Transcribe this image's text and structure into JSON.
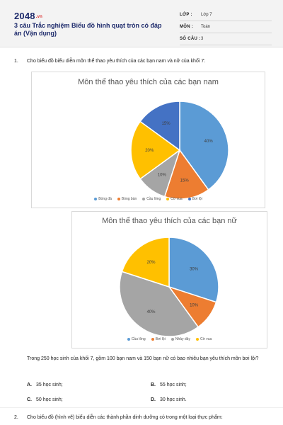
{
  "header": {
    "logo_text": "2048",
    "logo_suffix": ".vn",
    "title": "3 câu Trắc nghiệm Biểu đồ hình quạt tròn có đáp án (Vận dụng)",
    "meta": [
      {
        "label": "LỚP :",
        "value": "Lớp 7"
      },
      {
        "label": "MÔN :",
        "value": "Toán"
      },
      {
        "label": "SỐ CÂU :",
        "value": "3"
      }
    ]
  },
  "question1": {
    "number": "1.",
    "text": "Cho biểu đồ biểu diễn môn thể thao yêu thích của các bạn nam và nữ của khối 7:",
    "stem": "Trong 250 học sinh của khối 7, gồm 100 bạn nam và 150 bạn nữ có bao nhiêu bạn yêu thích môn bơi lội?",
    "options": [
      {
        "letter": "A.",
        "text": "35 học sinh;"
      },
      {
        "letter": "B.",
        "text": "55 học sinh;"
      },
      {
        "letter": "C.",
        "text": "50 học sinh;"
      },
      {
        "letter": "D.",
        "text": "30 học sinh."
      }
    ]
  },
  "question2": {
    "number": "2.",
    "text": "Cho biểu đồ (hình vẽ) biểu diễn các thành phần dinh dưỡng có trong một loại thực phẩm:"
  },
  "chart_data": [
    {
      "type": "pie",
      "title": "Môn thể thao yêu thích của các bạn nam",
      "categories": [
        "Bóng đá",
        "Bóng bàn",
        "Cầu lông",
        "Cờ vua",
        "Bơi lội"
      ],
      "values": [
        40,
        15,
        10,
        20,
        15
      ],
      "labels": [
        "40%",
        "15%",
        "10%",
        "20%",
        "15%"
      ],
      "colors": [
        "#5b9bd5",
        "#ed7d31",
        "#a5a5a5",
        "#ffc000",
        "#4472c4"
      ],
      "legend": "bottom"
    },
    {
      "type": "pie",
      "title": "Môn thể thao yêu thích của các bạn nữ",
      "categories": [
        "Cầu lông",
        "Bơi lội",
        "Nhảy dây",
        "Cờ vua"
      ],
      "values": [
        30,
        10,
        40,
        20
      ],
      "labels": [
        "30%",
        "10%",
        "40%",
        "20%"
      ],
      "colors": [
        "#5b9bd5",
        "#ed7d31",
        "#a5a5a5",
        "#ffc000"
      ],
      "legend": "bottom"
    }
  ]
}
